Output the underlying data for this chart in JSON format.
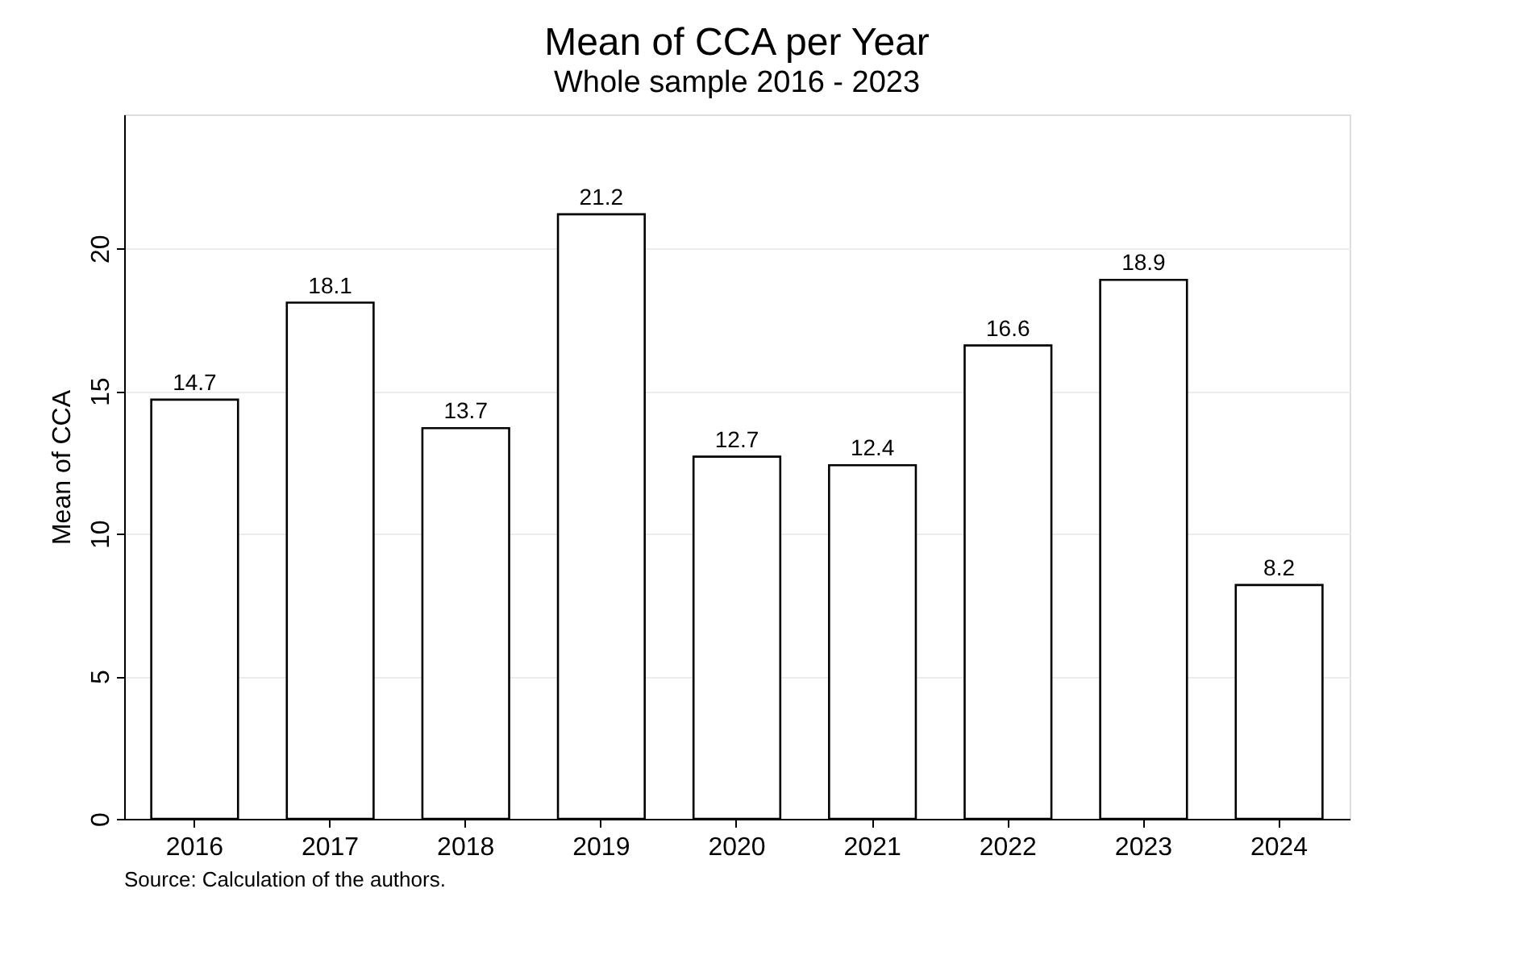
{
  "chart_data": {
    "type": "bar",
    "title": "Mean of CCA per Year",
    "subtitle": "Whole sample 2016 - 2023",
    "ylabel": "Mean of CCA",
    "categories": [
      "2016",
      "2017",
      "2018",
      "2019",
      "2020",
      "2021",
      "2022",
      "2023",
      "2024"
    ],
    "values": [
      14.7,
      18.1,
      13.7,
      21.2,
      12.7,
      12.4,
      16.6,
      18.9,
      8.2
    ],
    "color": "#ffffff",
    "ylim": [
      0,
      24.7
    ],
    "yticks": [
      0,
      5,
      10,
      15,
      20
    ],
    "grid": "y",
    "data_labels": true,
    "annotations": [
      "Source: Calculation of the authors."
    ]
  }
}
